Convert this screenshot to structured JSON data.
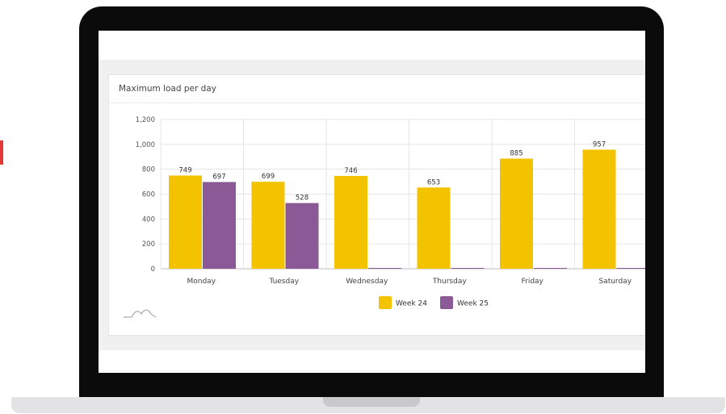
{
  "card": {
    "title": "Maximum load per day"
  },
  "chart_data": {
    "type": "bar",
    "title": "Maximum load per day",
    "categories": [
      "Monday",
      "Tuesday",
      "Wednesday",
      "Thursday",
      "Friday",
      "Saturday"
    ],
    "series": [
      {
        "name": "Week 24",
        "color": "#f3c300",
        "values": [
          749,
          699,
          746,
          653,
          885,
          957
        ]
      },
      {
        "name": "Week 25",
        "color": "#8b5a96",
        "values": [
          697,
          528,
          0,
          0,
          0,
          0
        ]
      }
    ],
    "y_ticks": [
      "0",
      "200",
      "400",
      "600",
      "800",
      "1,000",
      "1,200"
    ],
    "ylim": [
      0,
      1200
    ],
    "grid": true,
    "legend_position": "bottom"
  }
}
